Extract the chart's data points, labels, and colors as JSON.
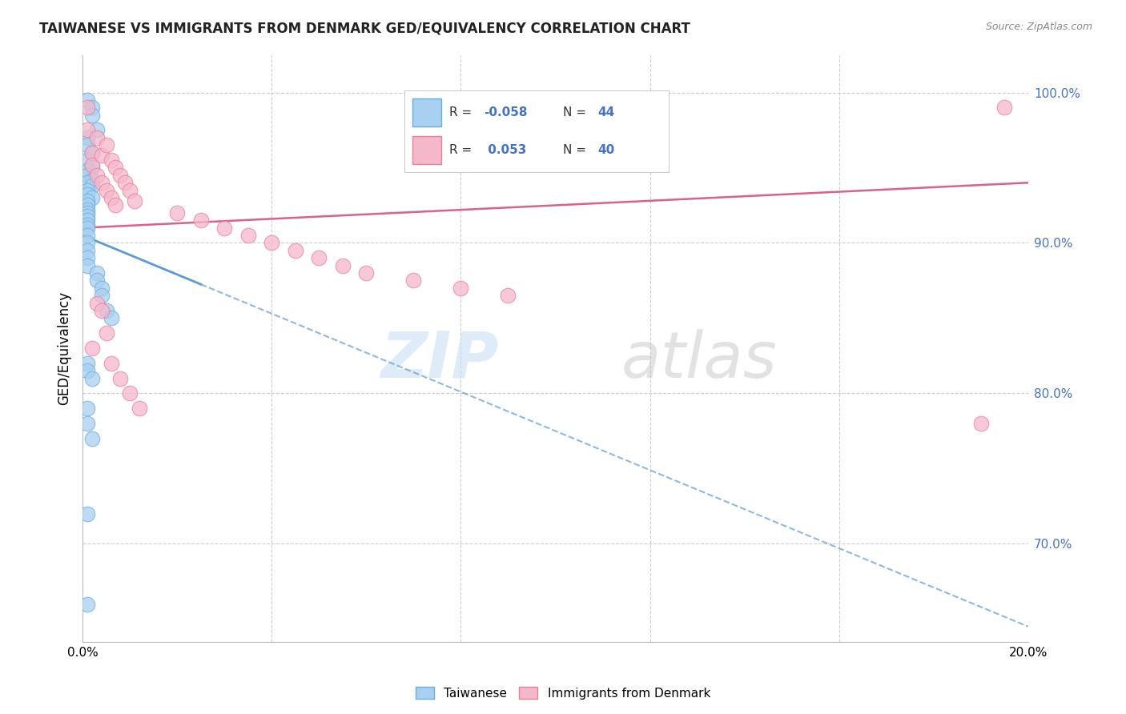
{
  "title": "TAIWANESE VS IMMIGRANTS FROM DENMARK GED/EQUIVALENCY CORRELATION CHART",
  "source": "Source: ZipAtlas.com",
  "ylabel": "GED/Equivalency",
  "xmin": 0.0,
  "xmax": 0.2,
  "ymin": 0.635,
  "ymax": 1.025,
  "y_ticks_right": [
    0.7,
    0.8,
    0.9,
    1.0
  ],
  "y_tick_labels_right": [
    "70.0%",
    "80.0%",
    "90.0%",
    "100.0%"
  ],
  "grid_color": "#cccccc",
  "blue_color": "#a8d0f0",
  "pink_color": "#f5b8cb",
  "blue_edge": "#6aaee0",
  "pink_edge": "#e8809a",
  "blue_line_color": "#5b9bd5",
  "pink_line_color": "#d94f7a",
  "legend_R_blue": "-0.058",
  "legend_N_blue": "44",
  "legend_R_pink": "0.053",
  "legend_N_pink": "40",
  "taiwanese_x": [
    0.001,
    0.002,
    0.002,
    0.003,
    0.001,
    0.001,
    0.002,
    0.001,
    0.002,
    0.001,
    0.001,
    0.002,
    0.001,
    0.002,
    0.001,
    0.001,
    0.002,
    0.001,
    0.001,
    0.001,
    0.001,
    0.001,
    0.001,
    0.001,
    0.001,
    0.001,
    0.001,
    0.001,
    0.001,
    0.001,
    0.003,
    0.003,
    0.004,
    0.004,
    0.005,
    0.006,
    0.001,
    0.001,
    0.002,
    0.001,
    0.001,
    0.002,
    0.001,
    0.001
  ],
  "taiwanese_y": [
    0.995,
    0.99,
    0.985,
    0.975,
    0.97,
    0.965,
    0.96,
    0.955,
    0.95,
    0.948,
    0.945,
    0.942,
    0.94,
    0.938,
    0.935,
    0.932,
    0.93,
    0.928,
    0.925,
    0.922,
    0.92,
    0.918,
    0.915,
    0.912,
    0.91,
    0.905,
    0.9,
    0.895,
    0.89,
    0.885,
    0.88,
    0.875,
    0.87,
    0.865,
    0.855,
    0.85,
    0.82,
    0.815,
    0.81,
    0.79,
    0.78,
    0.77,
    0.72,
    0.66
  ],
  "denmark_x": [
    0.001,
    0.001,
    0.002,
    0.002,
    0.003,
    0.003,
    0.004,
    0.004,
    0.005,
    0.005,
    0.006,
    0.006,
    0.007,
    0.007,
    0.008,
    0.009,
    0.01,
    0.011,
    0.02,
    0.025,
    0.03,
    0.035,
    0.04,
    0.045,
    0.05,
    0.055,
    0.06,
    0.07,
    0.08,
    0.09,
    0.003,
    0.004,
    0.005,
    0.002,
    0.006,
    0.008,
    0.01,
    0.012,
    0.19,
    0.195
  ],
  "denmark_y": [
    0.99,
    0.975,
    0.96,
    0.952,
    0.97,
    0.945,
    0.958,
    0.94,
    0.965,
    0.935,
    0.955,
    0.93,
    0.95,
    0.925,
    0.945,
    0.94,
    0.935,
    0.928,
    0.92,
    0.915,
    0.91,
    0.905,
    0.9,
    0.895,
    0.89,
    0.885,
    0.88,
    0.875,
    0.87,
    0.865,
    0.86,
    0.855,
    0.84,
    0.83,
    0.82,
    0.81,
    0.8,
    0.79,
    0.78,
    0.99
  ],
  "background_color": "#ffffff"
}
